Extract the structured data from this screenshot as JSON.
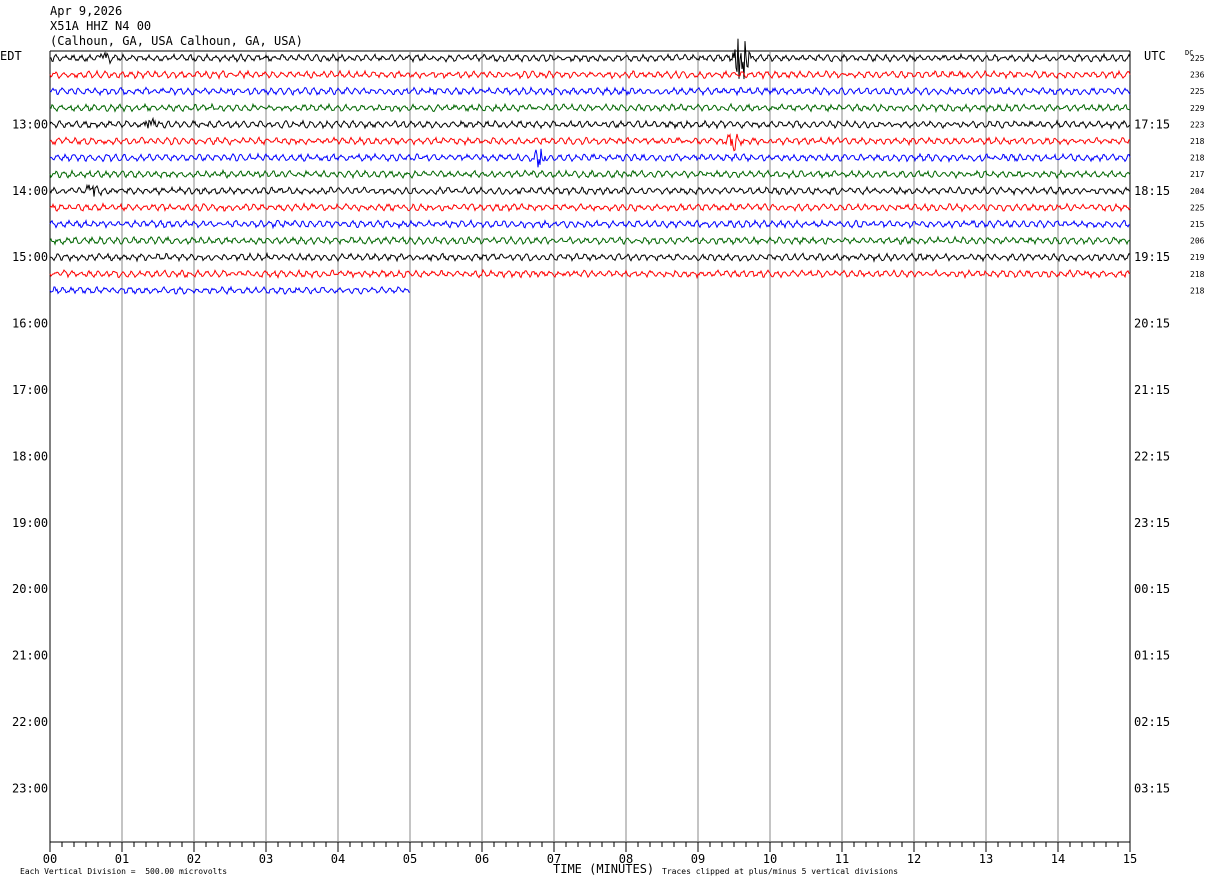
{
  "header": {
    "date": "Apr 9,2026",
    "station": "X51A HHZ N4 00",
    "location": "(Calhoun, GA, USA Calhoun, GA, USA)"
  },
  "axis": {
    "left_label": "EDT",
    "right_label": "UTC",
    "dc_label": "DC",
    "x_title": "TIME (MINUTES)",
    "x_ticks": [
      "00",
      "01",
      "02",
      "03",
      "04",
      "05",
      "06",
      "07",
      "08",
      "09",
      "10",
      "11",
      "12",
      "13",
      "14",
      "15"
    ]
  },
  "footer": {
    "scale_note": "Each Vertical Division =  500.00 microvolts",
    "clip_note": "Traces clipped at plus/minus 5 vertical divisions"
  },
  "colors": {
    "black": "#000000",
    "red": "#ff0000",
    "blue": "#0000ff",
    "green": "#006600",
    "grid": "#888888"
  },
  "chart_data": {
    "type": "line",
    "title": "",
    "xlabel": "TIME (MINUTES)",
    "xlim": [
      0,
      15
    ],
    "rows_per_hour": 4,
    "trace_colors": [
      "black",
      "red",
      "blue",
      "green"
    ],
    "left_time_labels": [
      "13:00",
      "14:00",
      "15:00",
      "16:00",
      "17:00",
      "18:00",
      "19:00",
      "20:00",
      "21:00",
      "22:00",
      "23:00"
    ],
    "right_time_labels": [
      "17:15",
      "18:15",
      "19:15",
      "20:15",
      "21:15",
      "22:15",
      "23:15",
      "00:15",
      "01:15",
      "02:15",
      "03:15"
    ],
    "dc_offsets": [
      "225",
      "236",
      "225",
      "229",
      "223",
      "218",
      "218",
      "217",
      "204",
      "225",
      "215",
      "206",
      "219",
      "218",
      "218"
    ],
    "trace_end_minute_last_row": 5.0,
    "events": [
      {
        "row": 0,
        "minute": 9.6,
        "amplitude": "large"
      },
      {
        "row": 0,
        "minute": 0.75,
        "amplitude": "small"
      },
      {
        "row": 4,
        "minute": 1.4,
        "amplitude": "small"
      },
      {
        "row": 5,
        "minute": 9.5,
        "amplitude": "medium"
      },
      {
        "row": 6,
        "minute": 6.8,
        "amplitude": "medium"
      },
      {
        "row": 8,
        "minute": 0.6,
        "amplitude": "small"
      }
    ]
  }
}
